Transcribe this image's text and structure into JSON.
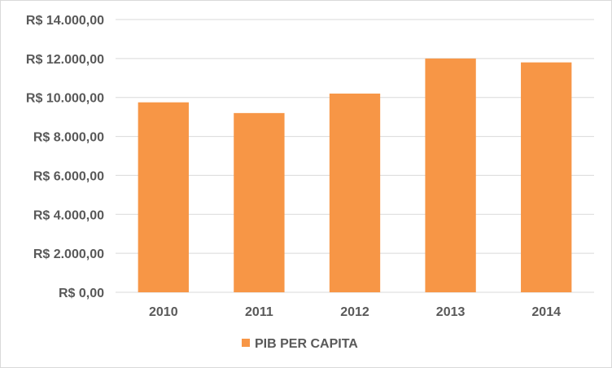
{
  "chart_data": {
    "type": "bar",
    "categories": [
      "2010",
      "2011",
      "2012",
      "2013",
      "2014"
    ],
    "series": [
      {
        "name": "PIB PER CAPITA",
        "values": [
          9750,
          9200,
          10200,
          12000,
          11800
        ]
      }
    ],
    "ylim": [
      0,
      14000
    ],
    "yticks": [
      0,
      2000,
      4000,
      6000,
      8000,
      10000,
      12000,
      14000
    ],
    "ytick_labels": [
      "R$ 0,00",
      "R$ 2.000,00",
      "R$ 4.000,00",
      "R$ 6.000,00",
      "R$ 8.000,00",
      "R$ 10.000,00",
      "R$ 12.000,00",
      "R$ 14.000,00"
    ],
    "grid": true,
    "legend_position": "bottom",
    "colors": {
      "bar": "#F79646",
      "grid": "#D9D9D9",
      "text": "#595959"
    }
  }
}
